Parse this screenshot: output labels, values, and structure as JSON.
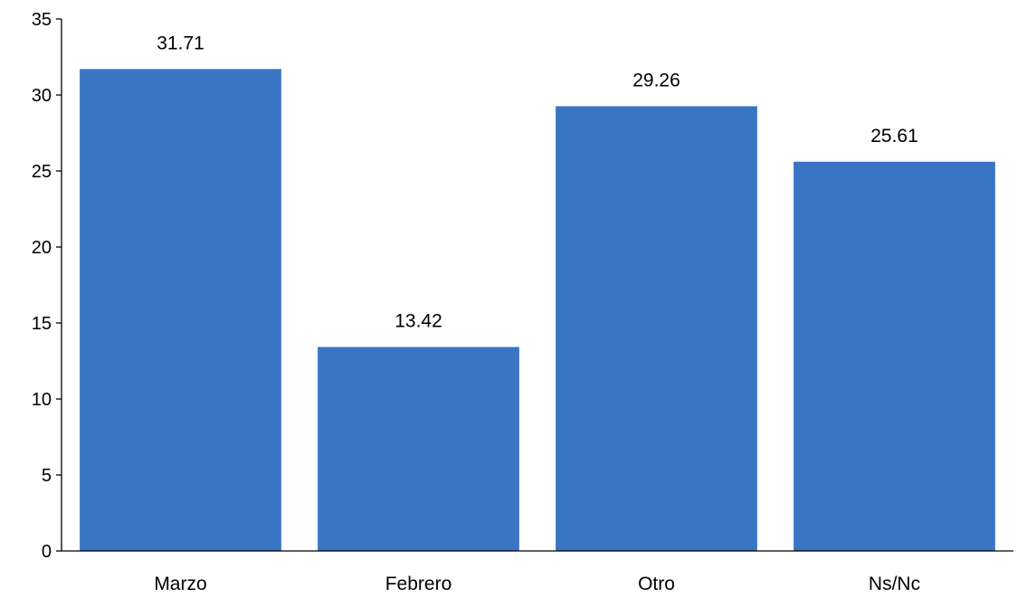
{
  "chart_data": {
    "type": "bar",
    "title": "",
    "xlabel": "",
    "ylabel": "",
    "categories": [
      "Marzo",
      "Febrero",
      "Otro",
      "Ns/Nc"
    ],
    "values": [
      31.71,
      13.42,
      29.26,
      25.61
    ],
    "value_labels": [
      "31.71",
      "13.42",
      "29.26",
      "25.61"
    ],
    "ylim": [
      0,
      35
    ],
    "yticks": [
      0,
      5,
      10,
      15,
      20,
      25,
      30,
      35
    ],
    "ytick_labels": [
      "0",
      "5",
      "10",
      "15",
      "20",
      "25",
      "30",
      "35"
    ],
    "bar_color": "#3A75C4",
    "grid": false,
    "legend": "none"
  }
}
